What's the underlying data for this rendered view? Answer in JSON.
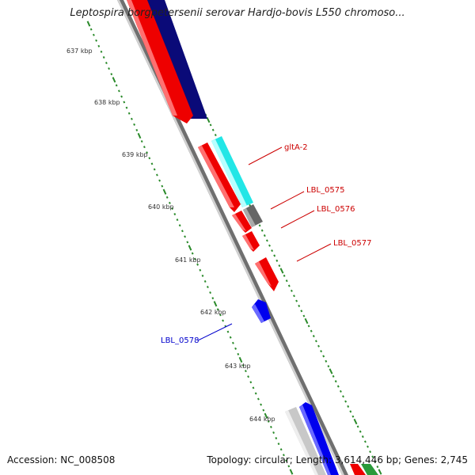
{
  "title": "Leptospira borgpetersenii serovar Hardjo-bovis L550 chromoso...",
  "footer": {
    "accession": "Accession: NC_008508",
    "summary": "Topology: circular; Length: 3,614,446 bp; Genes: 2,745"
  },
  "colors": {
    "backbone": "#888888",
    "tick_dots": "#2a8a2a",
    "forward_red": "#ee0000",
    "reverse_red": "#ee0000",
    "navy": "#0a0a7a",
    "cyan": "#22e8e8",
    "gray_gene": "#666666",
    "blue_gene": "#0000ee",
    "light_gray_gene": "#c8c8c8",
    "green_gene": "#2a9a3a",
    "label_red": "#cc0000",
    "label_blue": "#0000cc"
  },
  "scale_ticks": [
    "637 kbp",
    "638 kbp",
    "639 kbp",
    "640 kbp",
    "641 kbp",
    "642 kbp",
    "643 kbp",
    "644 kbp"
  ],
  "gene_labels": [
    {
      "text": "gltA-2",
      "color": "red"
    },
    {
      "text": "LBL_0575",
      "color": "red"
    },
    {
      "text": "LBL_0576",
      "color": "red"
    },
    {
      "text": "LBL_0577",
      "color": "red"
    },
    {
      "text": "LBL_0578",
      "color": "blue"
    }
  ]
}
